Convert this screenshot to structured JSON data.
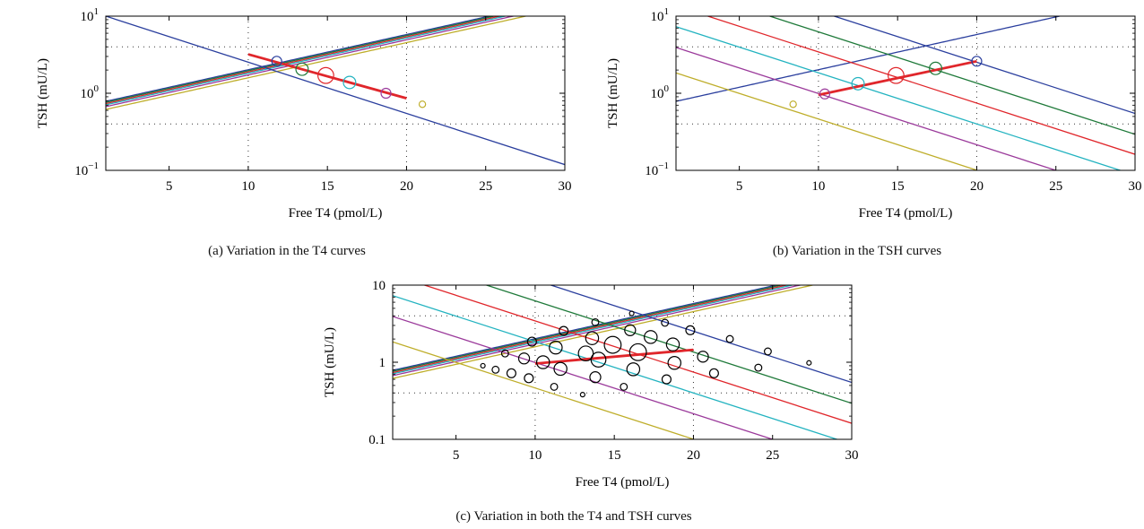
{
  "chart_data": [
    {
      "type": "line",
      "panel": "a",
      "caption": "(a)  Variation in the T4 curves",
      "xlabel": "Free T4 (pmol/L)",
      "ylabel": "TSH (mU/L)",
      "xlim": [
        1,
        30
      ],
      "ylim": [
        0.1,
        10
      ],
      "yscale": "log",
      "xticks": [
        "5",
        "10",
        "15",
        "20",
        "25",
        "30"
      ],
      "yticks": [
        {
          "base": "10",
          "exp": "−1"
        },
        {
          "base": "10",
          "exp": "0"
        },
        {
          "base": "10",
          "exp": "1"
        }
      ],
      "reference_lines": {
        "x": [
          10,
          20
        ],
        "y": [
          0.4,
          4.0
        ]
      },
      "colors": [
        "#2b3f9e",
        "#1f7a3a",
        "#e0262b",
        "#23b3c0",
        "#9b3a9b",
        "#bfae2b"
      ],
      "t4_curves": {
        "form": "TSH = exp(k * (T4 - t0))",
        "k": 0.105,
        "t0": [
          3.3,
          3.6,
          3.95,
          4.3,
          4.8,
          5.6
        ]
      },
      "tsh_curves": {
        "form": "log10(TSH) = a - b * T4",
        "b": 0.0664,
        "a": [
          1.0664
        ]
      },
      "set_points": [
        {
          "x": 11.8,
          "y": 2.6,
          "size": 1,
          "color": "#2b3f9e"
        },
        {
          "x": 13.4,
          "y": 2.05,
          "size": 1.25,
          "color": "#1f7a3a"
        },
        {
          "x": 14.9,
          "y": 1.7,
          "size": 1.6,
          "color": "#e0262b"
        },
        {
          "x": 16.4,
          "y": 1.38,
          "size": 1.25,
          "color": "#23b3c0"
        },
        {
          "x": 18.7,
          "y": 1.0,
          "size": 1,
          "color": "#9b3a9b"
        },
        {
          "x": 21.0,
          "y": 0.72,
          "size": 0.65,
          "color": "#bfae2b"
        }
      ],
      "highlight": {
        "color": "#e0262b",
        "x": [
          10,
          20
        ],
        "y": [
          3.2,
          0.86
        ]
      }
    },
    {
      "type": "line",
      "panel": "b",
      "caption": "(b)  Variation in the TSH curves",
      "xlabel": "Free T4 (pmol/L)",
      "ylabel": "TSH (mU/L)",
      "xlim": [
        1,
        30
      ],
      "ylim": [
        0.1,
        10
      ],
      "yscale": "log",
      "xticks": [
        "5",
        "10",
        "15",
        "20",
        "25",
        "30"
      ],
      "yticks": [
        {
          "base": "10",
          "exp": "−1"
        },
        {
          "base": "10",
          "exp": "0"
        },
        {
          "base": "10",
          "exp": "1"
        }
      ],
      "reference_lines": {
        "x": [
          10,
          20
        ],
        "y": [
          0.4,
          4.0
        ]
      },
      "colors": [
        "#2b3f9e",
        "#1f7a3a",
        "#e0262b",
        "#23b3c0",
        "#9b3a9b",
        "#bfae2b"
      ],
      "t4_curves": {
        "form": "TSH = exp(k * (T4 - t0))",
        "k": 0.105,
        "t0": [
          3.3
        ],
        "color_index": [
          0
        ]
      },
      "tsh_curves": {
        "form": "log10(TSH) = a - b * T4",
        "b": 0.0664,
        "a": [
          1.73,
          1.46,
          1.2,
          0.93,
          0.66,
          0.33
        ]
      },
      "set_points": [
        {
          "x": 20.0,
          "y": 2.6,
          "size": 1,
          "color": "#2b3f9e"
        },
        {
          "x": 17.4,
          "y": 2.1,
          "size": 1.25,
          "color": "#1f7a3a"
        },
        {
          "x": 14.9,
          "y": 1.7,
          "size": 1.6,
          "color": "#e0262b"
        },
        {
          "x": 12.5,
          "y": 1.33,
          "size": 1.25,
          "color": "#23b3c0"
        },
        {
          "x": 10.4,
          "y": 0.98,
          "size": 1,
          "color": "#9b3a9b"
        },
        {
          "x": 8.4,
          "y": 0.72,
          "size": 0.65,
          "color": "#bfae2b"
        }
      ],
      "highlight": {
        "color": "#e0262b",
        "x": [
          10,
          20
        ],
        "y": [
          0.95,
          2.6
        ]
      }
    },
    {
      "type": "line",
      "panel": "c",
      "caption": "(c)  Variation in both the T4 and TSH curves",
      "xlabel": "Free T4 (pmol/L)",
      "ylabel": "TSH (mU/L)",
      "xlim": [
        1,
        30
      ],
      "ylim": [
        0.1,
        10
      ],
      "yscale": "log",
      "xticks": [
        "5",
        "10",
        "15",
        "20",
        "25",
        "30"
      ],
      "yticks": [
        {
          "base": "0.1",
          "exp": ""
        },
        {
          "base": "1",
          "exp": ""
        },
        {
          "base": "10",
          "exp": ""
        }
      ],
      "reference_lines": {
        "x": [
          10,
          20
        ],
        "y": [
          0.4,
          4.0
        ]
      },
      "colors": [
        "#2b3f9e",
        "#1f7a3a",
        "#e0262b",
        "#23b3c0",
        "#9b3a9b",
        "#bfae2b"
      ],
      "t4_curves": {
        "form": "TSH = exp(k * (T4 - t0))",
        "k": 0.105,
        "t0": [
          3.3,
          3.6,
          3.95,
          4.3,
          4.8,
          5.6
        ]
      },
      "tsh_curves": {
        "form": "log10(TSH) = a - b * T4",
        "b": 0.0664,
        "a": [
          1.73,
          1.46,
          1.2,
          0.93,
          0.66,
          0.33
        ]
      },
      "set_points": [
        {
          "x": 14.9,
          "y": 1.68,
          "size": 1.7,
          "color": "#000000"
        },
        {
          "x": 16.5,
          "y": 1.35,
          "size": 1.7,
          "color": "#000000"
        },
        {
          "x": 13.2,
          "y": 1.3,
          "size": 1.5,
          "color": "#000000"
        },
        {
          "x": 14.0,
          "y": 1.08,
          "size": 1.5,
          "color": "#000000"
        },
        {
          "x": 17.3,
          "y": 2.12,
          "size": 1.3,
          "color": "#000000"
        },
        {
          "x": 13.6,
          "y": 2.05,
          "size": 1.3,
          "color": "#000000"
        },
        {
          "x": 11.3,
          "y": 1.55,
          "size": 1.3,
          "color": "#000000"
        },
        {
          "x": 18.7,
          "y": 1.7,
          "size": 1.3,
          "color": "#000000"
        },
        {
          "x": 10.5,
          "y": 1.0,
          "size": 1.3,
          "color": "#000000"
        },
        {
          "x": 11.6,
          "y": 0.82,
          "size": 1.3,
          "color": "#000000"
        },
        {
          "x": 16.2,
          "y": 0.81,
          "size": 1.3,
          "color": "#000000"
        },
        {
          "x": 18.8,
          "y": 0.98,
          "size": 1.3,
          "color": "#000000"
        },
        {
          "x": 16.0,
          "y": 2.6,
          "size": 1.1,
          "color": "#000000"
        },
        {
          "x": 9.3,
          "y": 1.12,
          "size": 1.1,
          "color": "#000000"
        },
        {
          "x": 20.6,
          "y": 1.18,
          "size": 1.1,
          "color": "#000000"
        },
        {
          "x": 13.8,
          "y": 0.64,
          "size": 1.1,
          "color": "#000000"
        },
        {
          "x": 11.8,
          "y": 2.55,
          "size": 0.9,
          "color": "#000000"
        },
        {
          "x": 19.8,
          "y": 2.6,
          "size": 0.9,
          "color": "#000000"
        },
        {
          "x": 9.8,
          "y": 1.85,
          "size": 0.9,
          "color": "#000000"
        },
        {
          "x": 8.5,
          "y": 0.72,
          "size": 0.9,
          "color": "#000000"
        },
        {
          "x": 9.6,
          "y": 0.62,
          "size": 0.9,
          "color": "#000000"
        },
        {
          "x": 18.3,
          "y": 0.6,
          "size": 0.9,
          "color": "#000000"
        },
        {
          "x": 21.3,
          "y": 0.72,
          "size": 0.9,
          "color": "#000000"
        },
        {
          "x": 13.8,
          "y": 3.3,
          "size": 0.7,
          "color": "#000000"
        },
        {
          "x": 18.2,
          "y": 3.25,
          "size": 0.7,
          "color": "#000000"
        },
        {
          "x": 22.3,
          "y": 2.0,
          "size": 0.7,
          "color": "#000000"
        },
        {
          "x": 8.1,
          "y": 1.3,
          "size": 0.7,
          "color": "#000000"
        },
        {
          "x": 24.7,
          "y": 1.38,
          "size": 0.7,
          "color": "#000000"
        },
        {
          "x": 7.5,
          "y": 0.8,
          "size": 0.7,
          "color": "#000000"
        },
        {
          "x": 24.1,
          "y": 0.85,
          "size": 0.7,
          "color": "#000000"
        },
        {
          "x": 11.2,
          "y": 0.48,
          "size": 0.7,
          "color": "#000000"
        },
        {
          "x": 15.6,
          "y": 0.48,
          "size": 0.7,
          "color": "#000000"
        },
        {
          "x": 16.1,
          "y": 4.3,
          "size": 0.45,
          "color": "#000000"
        },
        {
          "x": 6.7,
          "y": 0.9,
          "size": 0.45,
          "color": "#000000"
        },
        {
          "x": 27.3,
          "y": 0.98,
          "size": 0.45,
          "color": "#000000"
        },
        {
          "x": 13.0,
          "y": 0.38,
          "size": 0.45,
          "color": "#000000"
        }
      ],
      "highlight": {
        "color": "#e0262b",
        "x": [
          10,
          20
        ],
        "y": [
          0.96,
          1.45
        ]
      }
    }
  ]
}
